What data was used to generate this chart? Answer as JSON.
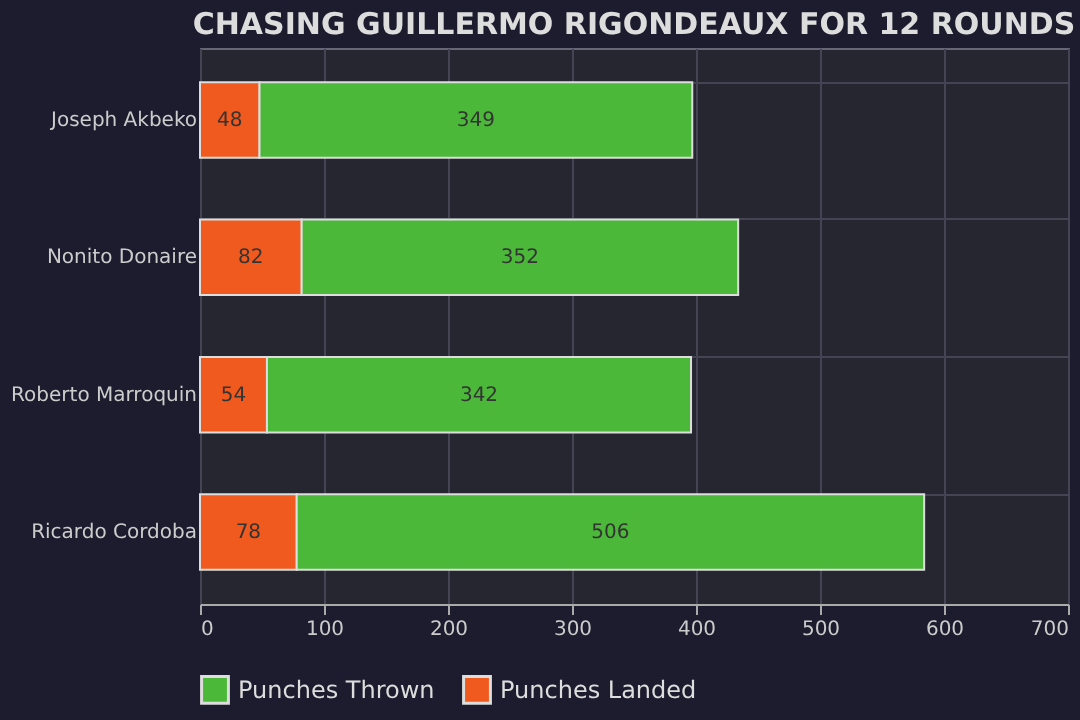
{
  "chart_data": {
    "type": "bar",
    "orientation": "horizontal",
    "stacked": true,
    "title": "CHASING GUILLERMO RIGONDEAUX FOR 12 ROUNDS",
    "categories": [
      "Joseph Akbeko",
      "Nonito Donaire",
      "Roberto Marroquin",
      "Ricardo Cordoba"
    ],
    "series": [
      {
        "name": "Punches Landed",
        "color": "#f05a1e",
        "values": [
          48,
          82,
          54,
          78
        ]
      },
      {
        "name": "Punches Thrown",
        "color": "#4cb83a",
        "values": [
          349,
          352,
          342,
          506
        ]
      }
    ],
    "xlim": [
      0,
      700
    ],
    "xticks": [
      0,
      100,
      200,
      300,
      400,
      500,
      600,
      700
    ],
    "data_labels": true,
    "grid": true,
    "legend": "bottom"
  }
}
